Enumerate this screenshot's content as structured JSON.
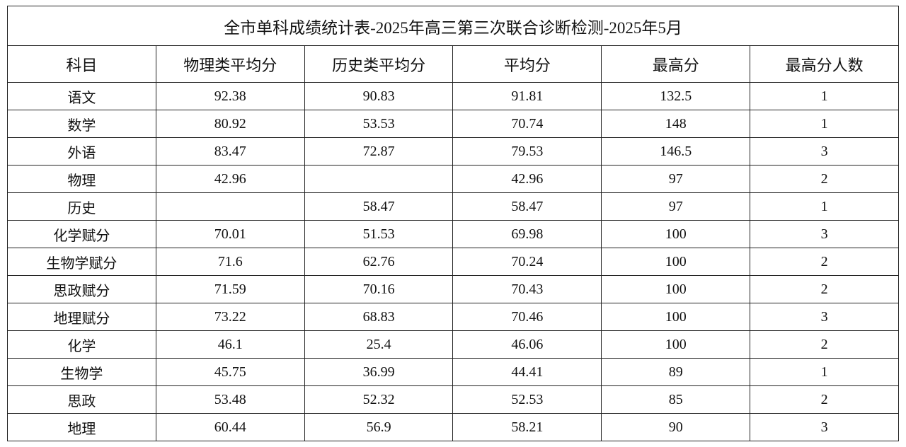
{
  "table": {
    "title": "全市单科成绩统计表-2025年高三第三次联合诊断检测-2025年5月",
    "header": [
      "科目",
      "物理类平均分",
      "历史类平均分",
      "平均分",
      "最高分",
      "最高分人数"
    ],
    "rows": [
      [
        "语文",
        92.38,
        90.83,
        91.81,
        132.5,
        1
      ],
      [
        "数学",
        80.92,
        53.53,
        70.74,
        148,
        1
      ],
      [
        "外语",
        83.47,
        72.87,
        79.53,
        146.5,
        3
      ],
      [
        "物理",
        42.96,
        null,
        42.96,
        97,
        2
      ],
      [
        "历史",
        null,
        58.47,
        58.47,
        97,
        1
      ],
      [
        "化学赋分",
        70.01,
        51.53,
        69.98,
        100,
        3
      ],
      [
        "生物学赋分",
        71.6,
        62.76,
        70.24,
        100,
        2
      ],
      [
        "思政赋分",
        71.59,
        70.16,
        70.43,
        100,
        2
      ],
      [
        "地理赋分",
        73.22,
        68.83,
        70.46,
        100,
        3
      ],
      [
        "化学",
        46.1,
        25.4,
        46.06,
        100,
        2
      ],
      [
        "生物学",
        45.75,
        36.99,
        44.41,
        89,
        1
      ],
      [
        "思政",
        53.48,
        52.32,
        52.53,
        85,
        2
      ],
      [
        "地理",
        60.44,
        56.9,
        58.21,
        90,
        3
      ]
    ]
  }
}
